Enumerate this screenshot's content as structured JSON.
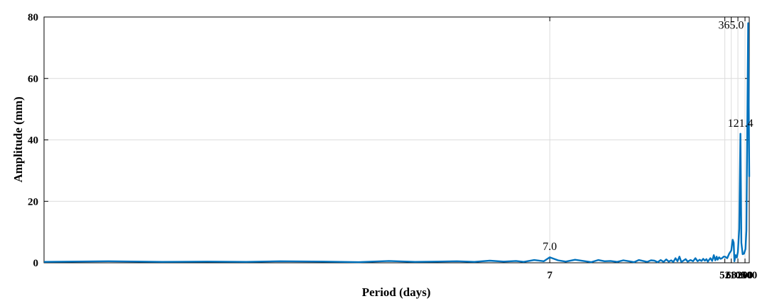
{
  "chart_data": {
    "type": "line",
    "title": "",
    "xlabel": "Period (days)",
    "ylabel": "Amplitude (mm)",
    "xscale": "reciprocal (frequency-linear)",
    "xlim": [
      2.0,
      500
    ],
    "ylim": [
      0,
      80
    ],
    "grid": true,
    "x_ticks": [
      7,
      52,
      68,
      100,
      200,
      500
    ],
    "x_tick_labels": [
      "7",
      "52",
      "68",
      "100",
      "200",
      "500"
    ],
    "y_ticks": [
      0,
      20,
      40,
      60,
      80
    ],
    "y_tick_labels": [
      "0",
      "20",
      "40",
      "60",
      "80"
    ],
    "line_color": "#0072BD",
    "peak_annotations": [
      {
        "x": 7.0,
        "y": 1.8,
        "label": "7.0"
      },
      {
        "x": 121.4,
        "y": 42,
        "label": "121.4"
      },
      {
        "x": 365.0,
        "y": 78,
        "label": "365.0"
      }
    ],
    "series": [
      {
        "x": [
          500,
          365.0,
          250,
          214,
          176,
          150,
          132,
          121.4,
          110,
          100,
          93,
          86,
          80,
          77,
          73,
          68,
          62,
          57,
          52,
          50,
          47,
          45,
          43,
          41,
          40,
          38.5,
          37,
          35.5,
          34,
          33,
          32,
          31,
          30,
          29,
          28,
          27,
          26,
          25,
          24,
          23,
          22,
          21.3,
          20.5,
          20,
          19.5,
          19,
          18.5,
          18,
          17.5,
          17,
          16.5,
          16,
          15.5,
          15,
          14.5,
          14,
          13.5,
          13,
          12.5,
          12,
          11.5,
          11,
          10.5,
          10,
          9.6,
          9.2,
          8.8,
          8.4,
          8.0,
          7.6,
          7.3,
          7.0,
          6.8,
          6.5,
          6.2,
          6.0,
          5.7,
          5.4,
          5.1,
          4.8,
          4.5,
          4.2,
          3.9,
          3.6,
          3.3,
          3.0,
          2.8,
          2.6,
          2.4,
          2.2,
          2.0
        ],
        "y": [
          28,
          78,
          10.5,
          4.5,
          3.0,
          2.8,
          6.5,
          42,
          11,
          3.5,
          1.7,
          2.5,
          0.5,
          6.5,
          7.5,
          4.0,
          3.0,
          1.5,
          2.0,
          2.0,
          1.5,
          1.3,
          1.8,
          1.0,
          2.0,
          0.8,
          2.5,
          0.6,
          1.5,
          1.0,
          0.4,
          1.2,
          0.7,
          1.3,
          0.6,
          1.0,
          0.5,
          1.5,
          0.5,
          0.9,
          0.4,
          1.2,
          0.6,
          0.3,
          2.0,
          0.5,
          1.5,
          0.3,
          0.8,
          0.4,
          1.1,
          0.3,
          0.9,
          0.2,
          0.7,
          0.8,
          0.3,
          0.6,
          0.9,
          0.2,
          0.5,
          0.8,
          0.3,
          0.6,
          0.5,
          0.9,
          0.2,
          0.6,
          1.0,
          0.4,
          0.8,
          1.8,
          0.5,
          0.9,
          0.3,
          0.6,
          0.4,
          0.7,
          0.3,
          0.5,
          0.4,
          0.3,
          0.6,
          0.2,
          0.4,
          0.5,
          0.3,
          0.4,
          0.3,
          0.5,
          0.3
        ]
      }
    ]
  }
}
